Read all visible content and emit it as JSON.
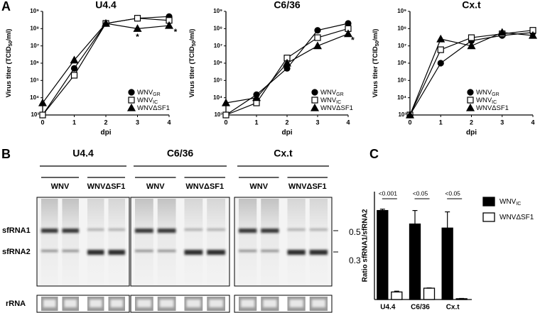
{
  "panel_labels": [
    "A",
    "B",
    "C"
  ],
  "chart_data": [
    {
      "type": "line",
      "title": "U4.4",
      "xlabel": "dpi",
      "ylabel": [
        "Virus titer (TCID",
        "50",
        "/ml)"
      ],
      "log_y": true,
      "x": [
        0,
        1,
        2,
        3,
        4
      ],
      "xlim": [
        0,
        4
      ],
      "xticks": [
        0,
        1,
        2,
        3,
        4
      ],
      "ylim": [
        1000,
        1000000000
      ],
      "yticks": [
        {
          "value": 1000,
          "label": "10³"
        },
        {
          "value": 10000,
          "label": "10⁴"
        },
        {
          "value": 100000,
          "label": "10⁵"
        },
        {
          "value": 1000000,
          "label": "10⁶"
        },
        {
          "value": 10000000,
          "label": "10⁷"
        },
        {
          "value": 100000000,
          "label": "10⁸"
        },
        {
          "value": 1000000000,
          "label": "10⁹"
        }
      ],
      "series": [
        {
          "name": "WNV",
          "subscript": "GR",
          "marker": "circle",
          "color": "#000000",
          "values": [
            1000,
            500000,
            200000000,
            400000000,
            500000000
          ]
        },
        {
          "name": "WNV",
          "subscript": "IC",
          "marker": "square",
          "color": "#000000",
          "values": [
            1000,
            200000,
            200000000,
            400000000,
            300000000
          ]
        },
        {
          "name": "WNVΔSF1",
          "marker": "triangle",
          "color": "#000000",
          "values": [
            5000,
            1500000,
            200000000,
            100000000,
            150000000
          ]
        }
      ],
      "annotations": [
        {
          "text": "*",
          "x": 3,
          "y": 30000000
        },
        {
          "text": "*",
          "x": 4.2,
          "y": 60000000
        }
      ]
    },
    {
      "type": "line",
      "title": "C6/36",
      "xlabel": "dpi",
      "ylabel": [
        "Virus titer (TCID",
        "50",
        "/ml)"
      ],
      "log_y": true,
      "x": [
        0,
        1,
        2,
        3,
        4
      ],
      "xlim": [
        0,
        4
      ],
      "xticks": [
        0,
        1,
        2,
        3,
        4
      ],
      "ylim": [
        1000,
        1000000000
      ],
      "yticks": [
        {
          "value": 1000,
          "label": "10³"
        },
        {
          "value": 10000,
          "label": "10⁴"
        },
        {
          "value": 100000,
          "label": "10⁵"
        },
        {
          "value": 1000000,
          "label": "10⁶"
        },
        {
          "value": 10000000,
          "label": "10⁷"
        },
        {
          "value": 100000000,
          "label": "10⁸"
        },
        {
          "value": 1000000000,
          "label": "10⁹"
        }
      ],
      "series": [
        {
          "name": "WNV",
          "subscript": "GR",
          "marker": "circle",
          "color": "#000000",
          "values": [
            1000,
            15000,
            500000,
            80000000,
            200000000
          ]
        },
        {
          "name": "WNV",
          "subscript": "IC",
          "marker": "square",
          "color": "#000000",
          "values": [
            1000,
            5000,
            2000000,
            30000000,
            100000000
          ]
        },
        {
          "name": "WNVΔSF1",
          "marker": "triangle",
          "color": "#000000",
          "values": [
            5000,
            10000,
            1000000,
            10000000,
            50000000
          ]
        }
      ],
      "annotations": [
        {
          "text": "*",
          "x": 4.15,
          "y": 20000000
        }
      ]
    },
    {
      "type": "line",
      "title": "Cx.t",
      "xlabel": "dpi",
      "ylabel": [
        "Virus titer (TCID",
        "50",
        "/ml)"
      ],
      "log_y": true,
      "x": [
        0,
        1,
        2,
        3,
        4
      ],
      "xlim": [
        0,
        4
      ],
      "xticks": [
        0,
        1,
        2,
        3,
        4
      ],
      "ylim": [
        1000,
        1000000000
      ],
      "yticks": [
        {
          "value": 1000,
          "label": "10³"
        },
        {
          "value": 10000,
          "label": "10⁴"
        },
        {
          "value": 100000,
          "label": "10⁵"
        },
        {
          "value": 1000000,
          "label": "10⁶"
        },
        {
          "value": 10000000,
          "label": "10⁷"
        },
        {
          "value": 100000000,
          "label": "10⁸"
        },
        {
          "value": 1000000000,
          "label": "10⁹"
        }
      ],
      "series": [
        {
          "name": "WNV",
          "subscript": "GR",
          "marker": "circle",
          "color": "#000000",
          "values": [
            1000,
            1000000,
            20000000,
            40000000,
            60000000
          ]
        },
        {
          "name": "WNV",
          "subscript": "IC",
          "marker": "square",
          "color": "#000000",
          "values": [
            1000,
            6000000,
            30000000,
            50000000,
            80000000
          ]
        },
        {
          "name": "WNVΔSF1",
          "marker": "triangle",
          "color": "#000000",
          "values": [
            1000,
            25000000,
            10000000,
            60000000,
            40000000
          ]
        }
      ]
    },
    {
      "type": "bar",
      "ylabel": "Ratio sfRNA1/sfRNA2",
      "categories": [
        "U4.4",
        "C6/36",
        "Cx.t"
      ],
      "ylim": [
        0,
        4
      ],
      "significance": [
        "<0.001",
        "<0.05",
        "<0.05"
      ],
      "series": [
        {
          "name": "WNV",
          "subscript": "IC",
          "color": "#000000",
          "values": [
            3.3,
            2.8,
            2.65
          ],
          "errors": [
            0.05,
            0.5,
            0.6
          ]
        },
        {
          "name": "WNVΔSF1",
          "color": "#ffffff",
          "values": [
            0.28,
            0.42,
            0.03
          ],
          "errors": [
            0.03,
            0.01,
            0.01
          ]
        }
      ]
    }
  ],
  "gel": {
    "groups": [
      "U4.4",
      "C6/36",
      "Cx.t"
    ],
    "lanes": [
      "WNV",
      "WNVΔSF1"
    ],
    "bands": [
      "sfRNA1",
      "sfRNA2"
    ],
    "markers": [
      0.5,
      0.3
    ],
    "loading": "rRNA"
  }
}
